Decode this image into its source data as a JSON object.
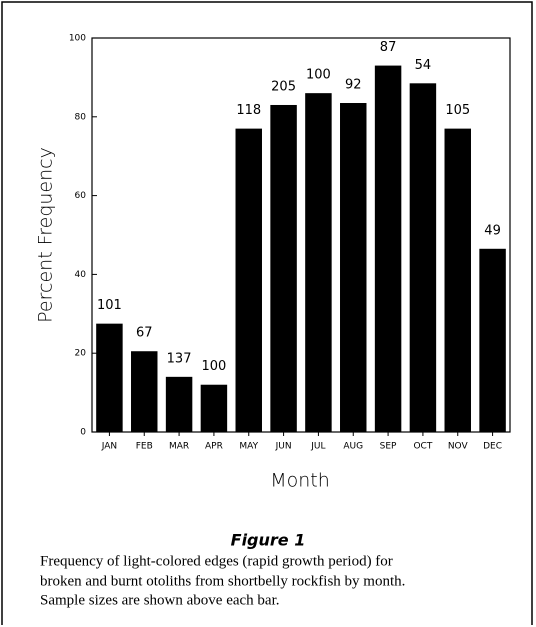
{
  "chart_data": {
    "type": "bar",
    "axis_title_x": "Month",
    "axis_title_y": "Percent Frequency",
    "categories": [
      "JAN",
      "FEB",
      "MAR",
      "APR",
      "MAY",
      "JUN",
      "JUL",
      "AUG",
      "SEP",
      "OCT",
      "NOV",
      "DEC"
    ],
    "values": [
      27.5,
      20.5,
      14,
      12,
      77,
      83,
      86,
      83.5,
      93,
      88.5,
      77,
      46.5
    ],
    "bar_labels": [
      "101",
      "67",
      "137",
      "100",
      "118",
      "205",
      "100",
      "92",
      "87",
      "54",
      "105",
      "49"
    ],
    "color": "#000000",
    "ylim": [
      0,
      100
    ],
    "yticks": [
      0,
      20,
      40,
      60,
      80,
      100
    ]
  },
  "figure": {
    "label": "Figure 1",
    "caption": [
      "Frequency of light-colored edges (rapid growth period) for",
      "broken and burnt otoliths from shortbelly rockfish by month.",
      "Sample sizes are shown above each bar."
    ]
  }
}
